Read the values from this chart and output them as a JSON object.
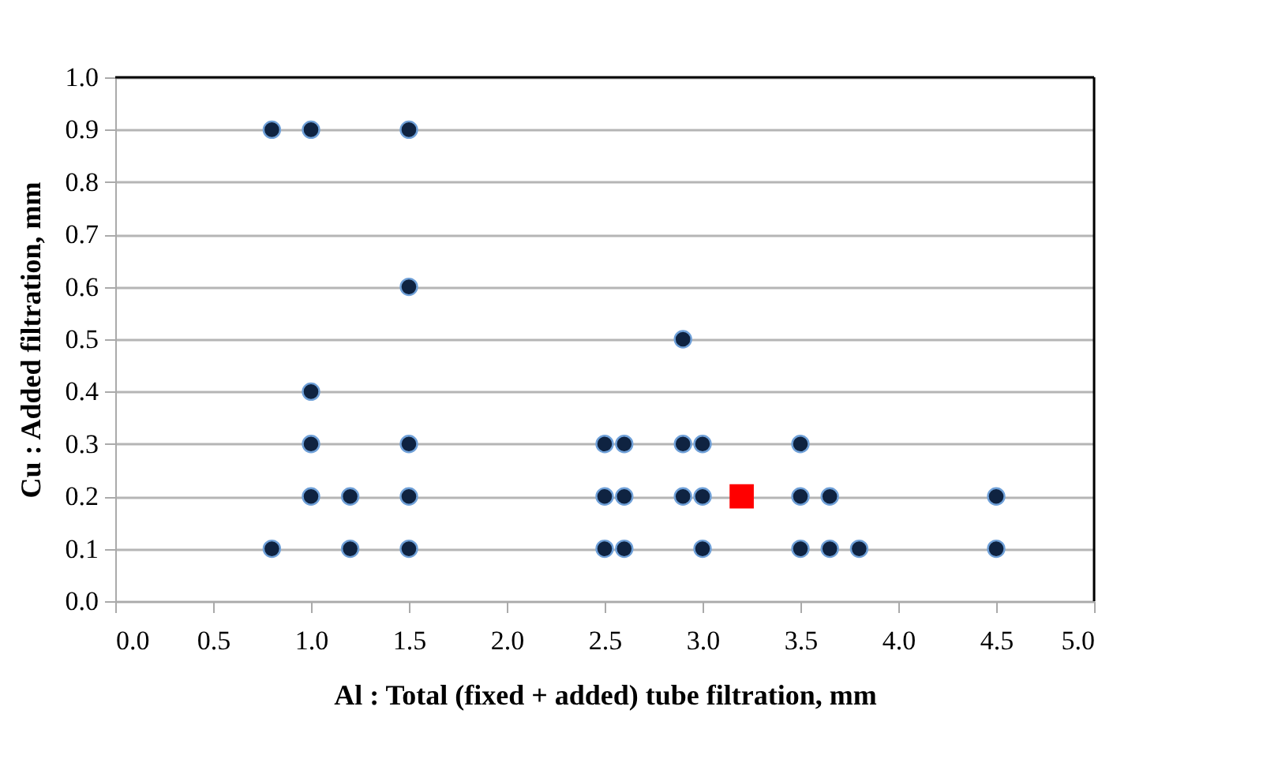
{
  "chart_data": {
    "type": "scatter",
    "xlabel": "Al : Total (fixed + added) tube filtration, mm",
    "ylabel": "Cu : Added filtration, mm",
    "xlim": [
      0,
      5
    ],
    "xticks": [
      {
        "value": 0,
        "label": "0.0"
      },
      {
        "value": 0.5,
        "label": "0.5"
      },
      {
        "value": 1,
        "label": "1.0"
      },
      {
        "value": 1.5,
        "label": "1.5"
      },
      {
        "value": 2,
        "label": "2.0"
      },
      {
        "value": 2.5,
        "label": "2.5"
      },
      {
        "value": 3,
        "label": "3.0"
      },
      {
        "value": 3.5,
        "label": "3.5"
      },
      {
        "value": 4,
        "label": "4.0"
      },
      {
        "value": 4.5,
        "label": "4.5"
      },
      {
        "value": 5,
        "label": "5.0"
      }
    ],
    "ylim": [
      0,
      1
    ],
    "yticks": [
      {
        "value": 0,
        "label": "0.0"
      },
      {
        "value": 0.1,
        "label": "0.1"
      },
      {
        "value": 0.2,
        "label": "0.2"
      },
      {
        "value": 0.3,
        "label": "0.3"
      },
      {
        "value": 0.4,
        "label": "0.4"
      },
      {
        "value": 0.5,
        "label": "0.5"
      },
      {
        "value": 0.6,
        "label": "0.6"
      },
      {
        "value": 0.7,
        "label": "0.7"
      },
      {
        "value": 0.8,
        "label": "0.8"
      },
      {
        "value": 0.9,
        "label": "0.9"
      },
      {
        "value": 1,
        "label": "1.0"
      }
    ],
    "grid": "y",
    "series": [
      {
        "color": "#0f2341",
        "marker": "circle",
        "x": [
          0.8,
          1.0,
          1.5,
          1.5,
          2.9,
          1.0,
          1.0,
          1.5,
          2.5,
          2.6,
          2.9,
          3.0,
          3.5,
          1.0,
          1.2,
          1.5,
          2.5,
          2.6,
          2.9,
          3.0,
          3.5,
          3.65,
          4.5,
          0.8,
          1.2,
          1.5,
          2.5,
          2.6,
          3.0,
          3.5,
          3.65,
          3.8,
          4.5
        ],
        "values": [
          0.9,
          0.9,
          0.9,
          0.6,
          0.5,
          0.4,
          0.3,
          0.3,
          0.3,
          0.3,
          0.3,
          0.3,
          0.3,
          0.2,
          0.2,
          0.2,
          0.2,
          0.2,
          0.2,
          0.2,
          0.2,
          0.2,
          0.2,
          0.1,
          0.1,
          0.1,
          0.1,
          0.1,
          0.1,
          0.1,
          0.1,
          0.1,
          0.1
        ]
      },
      {
        "color": "#ff0000",
        "marker": "square",
        "x": [
          3.2
        ],
        "values": [
          0.2
        ]
      }
    ]
  }
}
